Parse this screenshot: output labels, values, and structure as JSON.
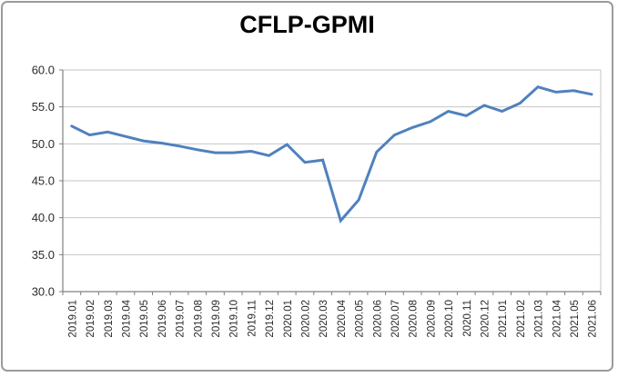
{
  "chart_data": {
    "type": "line",
    "title": "CFLP-GPMI",
    "xlabel": "",
    "ylabel": "",
    "ylim": [
      30.0,
      60.0
    ],
    "ytick_step": 5.0,
    "ytick_decimals": 1,
    "grid": "horizontal",
    "legend": "none",
    "categories": [
      "2019.01",
      "2019.02",
      "2019.03",
      "2019.04",
      "2019.05",
      "2019.06",
      "2019.07",
      "2019.08",
      "2019.09",
      "2019.10",
      "2019.11",
      "2019.12",
      "2020.01",
      "2020.02",
      "2020.03",
      "2020.04",
      "2020.05",
      "2020.06",
      "2020.07",
      "2020.08",
      "2020.09",
      "2020.10",
      "2020.11",
      "2020.12",
      "2021.01",
      "2021.02",
      "2021.03",
      "2021.04",
      "2021.05",
      "2021.06"
    ],
    "series": [
      {
        "name": "CFLP-GPMI",
        "values": [
          52.4,
          51.2,
          51.6,
          51.0,
          50.4,
          50.1,
          49.7,
          49.2,
          48.8,
          48.8,
          49.0,
          48.4,
          49.9,
          47.5,
          47.8,
          39.6,
          42.4,
          48.9,
          51.2,
          52.2,
          53.0,
          54.4,
          53.8,
          55.2,
          54.4,
          55.5,
          57.7,
          57.0,
          57.2,
          56.7
        ]
      }
    ],
    "colors": {
      "line": "#4F81BD",
      "gridline": "#C6C6C6",
      "axis": "#808080",
      "tick_label": "#2b2b2b",
      "plot_right_border": "#C6C6C6"
    }
  }
}
